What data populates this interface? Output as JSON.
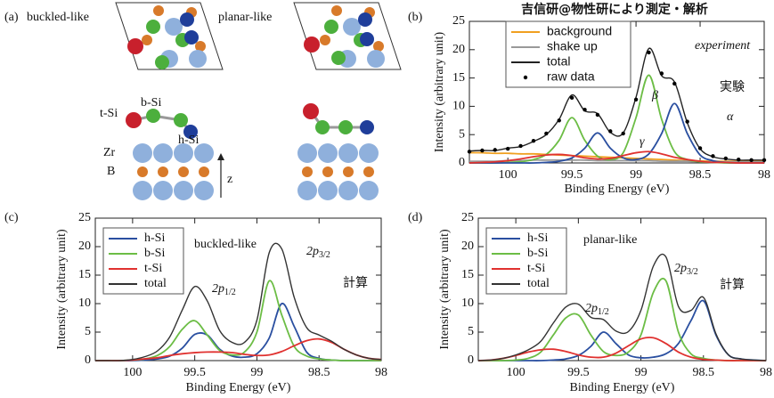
{
  "diagram": {
    "label": "(a)",
    "structures": [
      "buckled-like",
      "planar-like"
    ],
    "atoms": [
      "t-Si",
      "b-Si",
      "h-Si"
    ],
    "layers": [
      "Zr",
      "B"
    ],
    "axis": "z"
  },
  "chart_data": [
    {
      "type": "line",
      "label": "(b)",
      "title": "吉信研@物性研により測定・解析",
      "xlabel": "Binding Energy (eV)",
      "ylabel": "Intensity (arbitrary unit)",
      "annotations": [
        "experiment",
        "実験",
        "β",
        "α",
        "γ"
      ],
      "x": [
        100.3,
        100.2,
        100.1,
        100.0,
        99.9,
        99.8,
        99.7,
        99.6,
        99.5,
        99.4,
        99.3,
        99.2,
        99.1,
        99.0,
        98.9,
        98.8,
        98.7,
        98.6,
        98.5,
        98.4,
        98.3,
        98.2,
        98.1,
        98.0
      ],
      "xlim": [
        100.3,
        98.0
      ],
      "xticks": [
        100,
        99.5,
        99,
        98.5,
        98
      ],
      "ylim": [
        0,
        25
      ],
      "yticks": [
        0,
        5,
        10,
        15,
        20,
        25
      ],
      "series": [
        {
          "name": "background",
          "color": "#f0a020",
          "values": [
            1.8,
            1.8,
            1.7,
            1.7,
            1.6,
            1.6,
            1.5,
            1.4,
            1.3,
            1.2,
            1.1,
            1.0,
            0.9,
            0.8,
            0.7,
            0.6,
            0.5,
            0.4,
            0.35,
            0.3,
            0.3,
            0.3,
            0.3,
            0.3
          ]
        },
        {
          "name": "shake up",
          "color": "#999999",
          "values": [
            0.3,
            0.3,
            0.3,
            0.4,
            0.4,
            0.5,
            0.5,
            0.5,
            0.5,
            0.5,
            0.4,
            0.4,
            0.4,
            0.4,
            0.4,
            0.3,
            0.3,
            0.3,
            0.2,
            0.2,
            0.2,
            0.2,
            0.2,
            0.2
          ]
        },
        {
          "color": "#6cbd45",
          "values": [
            0,
            0,
            0,
            0.1,
            0.2,
            0.6,
            1.5,
            4,
            8,
            4,
            1.2,
            0.6,
            1.8,
            8,
            15.5,
            7.7,
            2,
            0.6,
            0.2,
            0.1,
            0,
            0,
            0,
            0
          ]
        },
        {
          "color": "#2a4fa0",
          "values": [
            0,
            0,
            0,
            0,
            0,
            0,
            0.1,
            0.3,
            0.9,
            2.6,
            5.3,
            2.6,
            0.9,
            0.6,
            1.6,
            5.2,
            10.5,
            5.2,
            1.4,
            0.4,
            0.1,
            0,
            0,
            0
          ]
        },
        {
          "color": "#e0312f",
          "values": [
            0,
            0.1,
            0.2,
            0.4,
            0.7,
            1.1,
            1.4,
            1.5,
            1.3,
            0.9,
            0.7,
            0.8,
            1.3,
            1.8,
            2,
            1.6,
            1,
            0.6,
            0.3,
            0.1,
            0.1,
            0,
            0,
            0
          ]
        },
        {
          "name": "total",
          "color": "#222222",
          "values": [
            2.1,
            2.2,
            2.2,
            2.6,
            2.9,
            3.8,
            5.0,
            7.7,
            12.0,
            9.2,
            8.7,
            5.4,
            5.3,
            11.6,
            20.2,
            15.4,
            14.3,
            7.1,
            2.5,
            1.1,
            0.7,
            0.5,
            0.5,
            0.5
          ]
        },
        {
          "name": "raw data",
          "color": "#000000",
          "marker": "dot",
          "values": [
            2.0,
            2.2,
            2.3,
            2.5,
            3.0,
            3.9,
            5.2,
            7.5,
            11.5,
            9.4,
            8.5,
            5.6,
            5.2,
            11.2,
            19.5,
            15.8,
            14.0,
            7.3,
            2.6,
            1.2,
            0.8,
            0.6,
            0.5,
            0.5
          ]
        }
      ]
    },
    {
      "type": "line",
      "label": "(c)",
      "xlabel": "Binding Energy (eV)",
      "ylabel": "Intensity (arbitrary unit)",
      "annotations": [
        "buckled-like",
        {
          "main": "2p",
          "sub": "1/2"
        },
        {
          "main": "2p",
          "sub": "3/2"
        },
        "計算"
      ],
      "x": [
        100.3,
        100.2,
        100.1,
        100.0,
        99.9,
        99.8,
        99.7,
        99.6,
        99.5,
        99.4,
        99.3,
        99.2,
        99.1,
        99.0,
        98.9,
        98.8,
        98.7,
        98.6,
        98.5,
        98.4,
        98.3,
        98.2,
        98.1,
        98.0
      ],
      "xlim": [
        100.3,
        98.0
      ],
      "xticks": [
        100,
        99.5,
        99,
        98.5,
        98
      ],
      "ylim": [
        0,
        25
      ],
      "yticks": [
        0,
        5,
        10,
        15,
        20,
        25
      ],
      "series": [
        {
          "name": "h-Si",
          "color": "#2a4fa0",
          "values": [
            0,
            0,
            0,
            0,
            0.1,
            0.3,
            0.8,
            2.2,
            4.6,
            4.5,
            2,
            0.8,
            0.6,
            1.2,
            4,
            10,
            6,
            1.5,
            0.4,
            0.1,
            0,
            0,
            0,
            0
          ]
        },
        {
          "name": "b-Si",
          "color": "#6cbd45",
          "values": [
            0,
            0,
            0,
            0.1,
            0.3,
            0.9,
            2.5,
            5.5,
            7,
            4.5,
            1.8,
            1,
            1.5,
            5,
            14,
            8,
            2.5,
            0.8,
            0.3,
            0.1,
            0,
            0,
            0,
            0
          ]
        },
        {
          "name": "t-Si",
          "color": "#e0312f",
          "values": [
            0,
            0,
            0,
            0.1,
            0.3,
            0.5,
            0.9,
            1.2,
            1.4,
            1.5,
            1.5,
            1.4,
            1.1,
            0.9,
            1.0,
            1.6,
            2.6,
            3.5,
            3.8,
            3.2,
            2,
            1,
            0.4,
            0.2
          ]
        },
        {
          "name": "total",
          "color": "#333333",
          "values": [
            0,
            0,
            0,
            0.2,
            0.7,
            1.7,
            4.2,
            8.9,
            13.0,
            10.5,
            5.3,
            3.2,
            3.2,
            7.1,
            19.0,
            19.6,
            11.1,
            5.8,
            4.5,
            3.4,
            2,
            1,
            0.4,
            0.2
          ]
        }
      ]
    },
    {
      "type": "line",
      "label": "(d)",
      "xlabel": "Binding Energy (eV)",
      "ylabel": "Intensity (arbitrary unit)",
      "annotations": [
        "planar-like",
        {
          "main": "2p",
          "sub": "1/2"
        },
        {
          "main": "2p",
          "sub": "3/2"
        },
        "計算"
      ],
      "x": [
        100.3,
        100.2,
        100.1,
        100.0,
        99.9,
        99.8,
        99.7,
        99.6,
        99.5,
        99.4,
        99.3,
        99.2,
        99.1,
        99.0,
        98.9,
        98.8,
        98.7,
        98.6,
        98.5,
        98.4,
        98.3,
        98.2,
        98.1,
        98.0
      ],
      "xlim": [
        100.3,
        98.0
      ],
      "xticks": [
        100,
        99.5,
        99,
        98.5,
        98
      ],
      "ylim": [
        0,
        25
      ],
      "yticks": [
        0,
        5,
        10,
        15,
        20,
        25
      ],
      "series": [
        {
          "name": "h-Si",
          "color": "#2a4fa0",
          "values": [
            0,
            0,
            0,
            0,
            0,
            0,
            0.1,
            0.3,
            0.9,
            2.5,
            5,
            3,
            1,
            0.5,
            0.6,
            1.2,
            3,
            7,
            10.5,
            4.5,
            1,
            0.3,
            0.1,
            0
          ]
        },
        {
          "name": "b-Si",
          "color": "#6cbd45",
          "values": [
            0,
            0,
            0,
            0.1,
            0.4,
            1.5,
            4.5,
            7.5,
            8,
            4.5,
            1.6,
            0.9,
            1.5,
            4.5,
            12,
            14,
            5,
            1.2,
            0.4,
            0.1,
            0,
            0,
            0,
            0
          ]
        },
        {
          "name": "t-Si",
          "color": "#e0312f",
          "values": [
            0,
            0.1,
            0.4,
            0.9,
            1.5,
            1.9,
            2,
            1.6,
            1,
            0.6,
            0.6,
            1.3,
            2.6,
            3.8,
            4,
            3,
            1.5,
            0.6,
            0.2,
            0.1,
            0,
            0,
            0,
            0
          ]
        },
        {
          "name": "total",
          "color": "#333333",
          "values": [
            0,
            0.1,
            0.4,
            1.0,
            1.9,
            3.4,
            6.6,
            9.4,
            9.9,
            7.6,
            7.2,
            5.2,
            5.1,
            8.8,
            16.6,
            18.2,
            9.5,
            8.8,
            11.1,
            4.7,
            1.0,
            0.3,
            0.1,
            0
          ]
        }
      ]
    }
  ]
}
